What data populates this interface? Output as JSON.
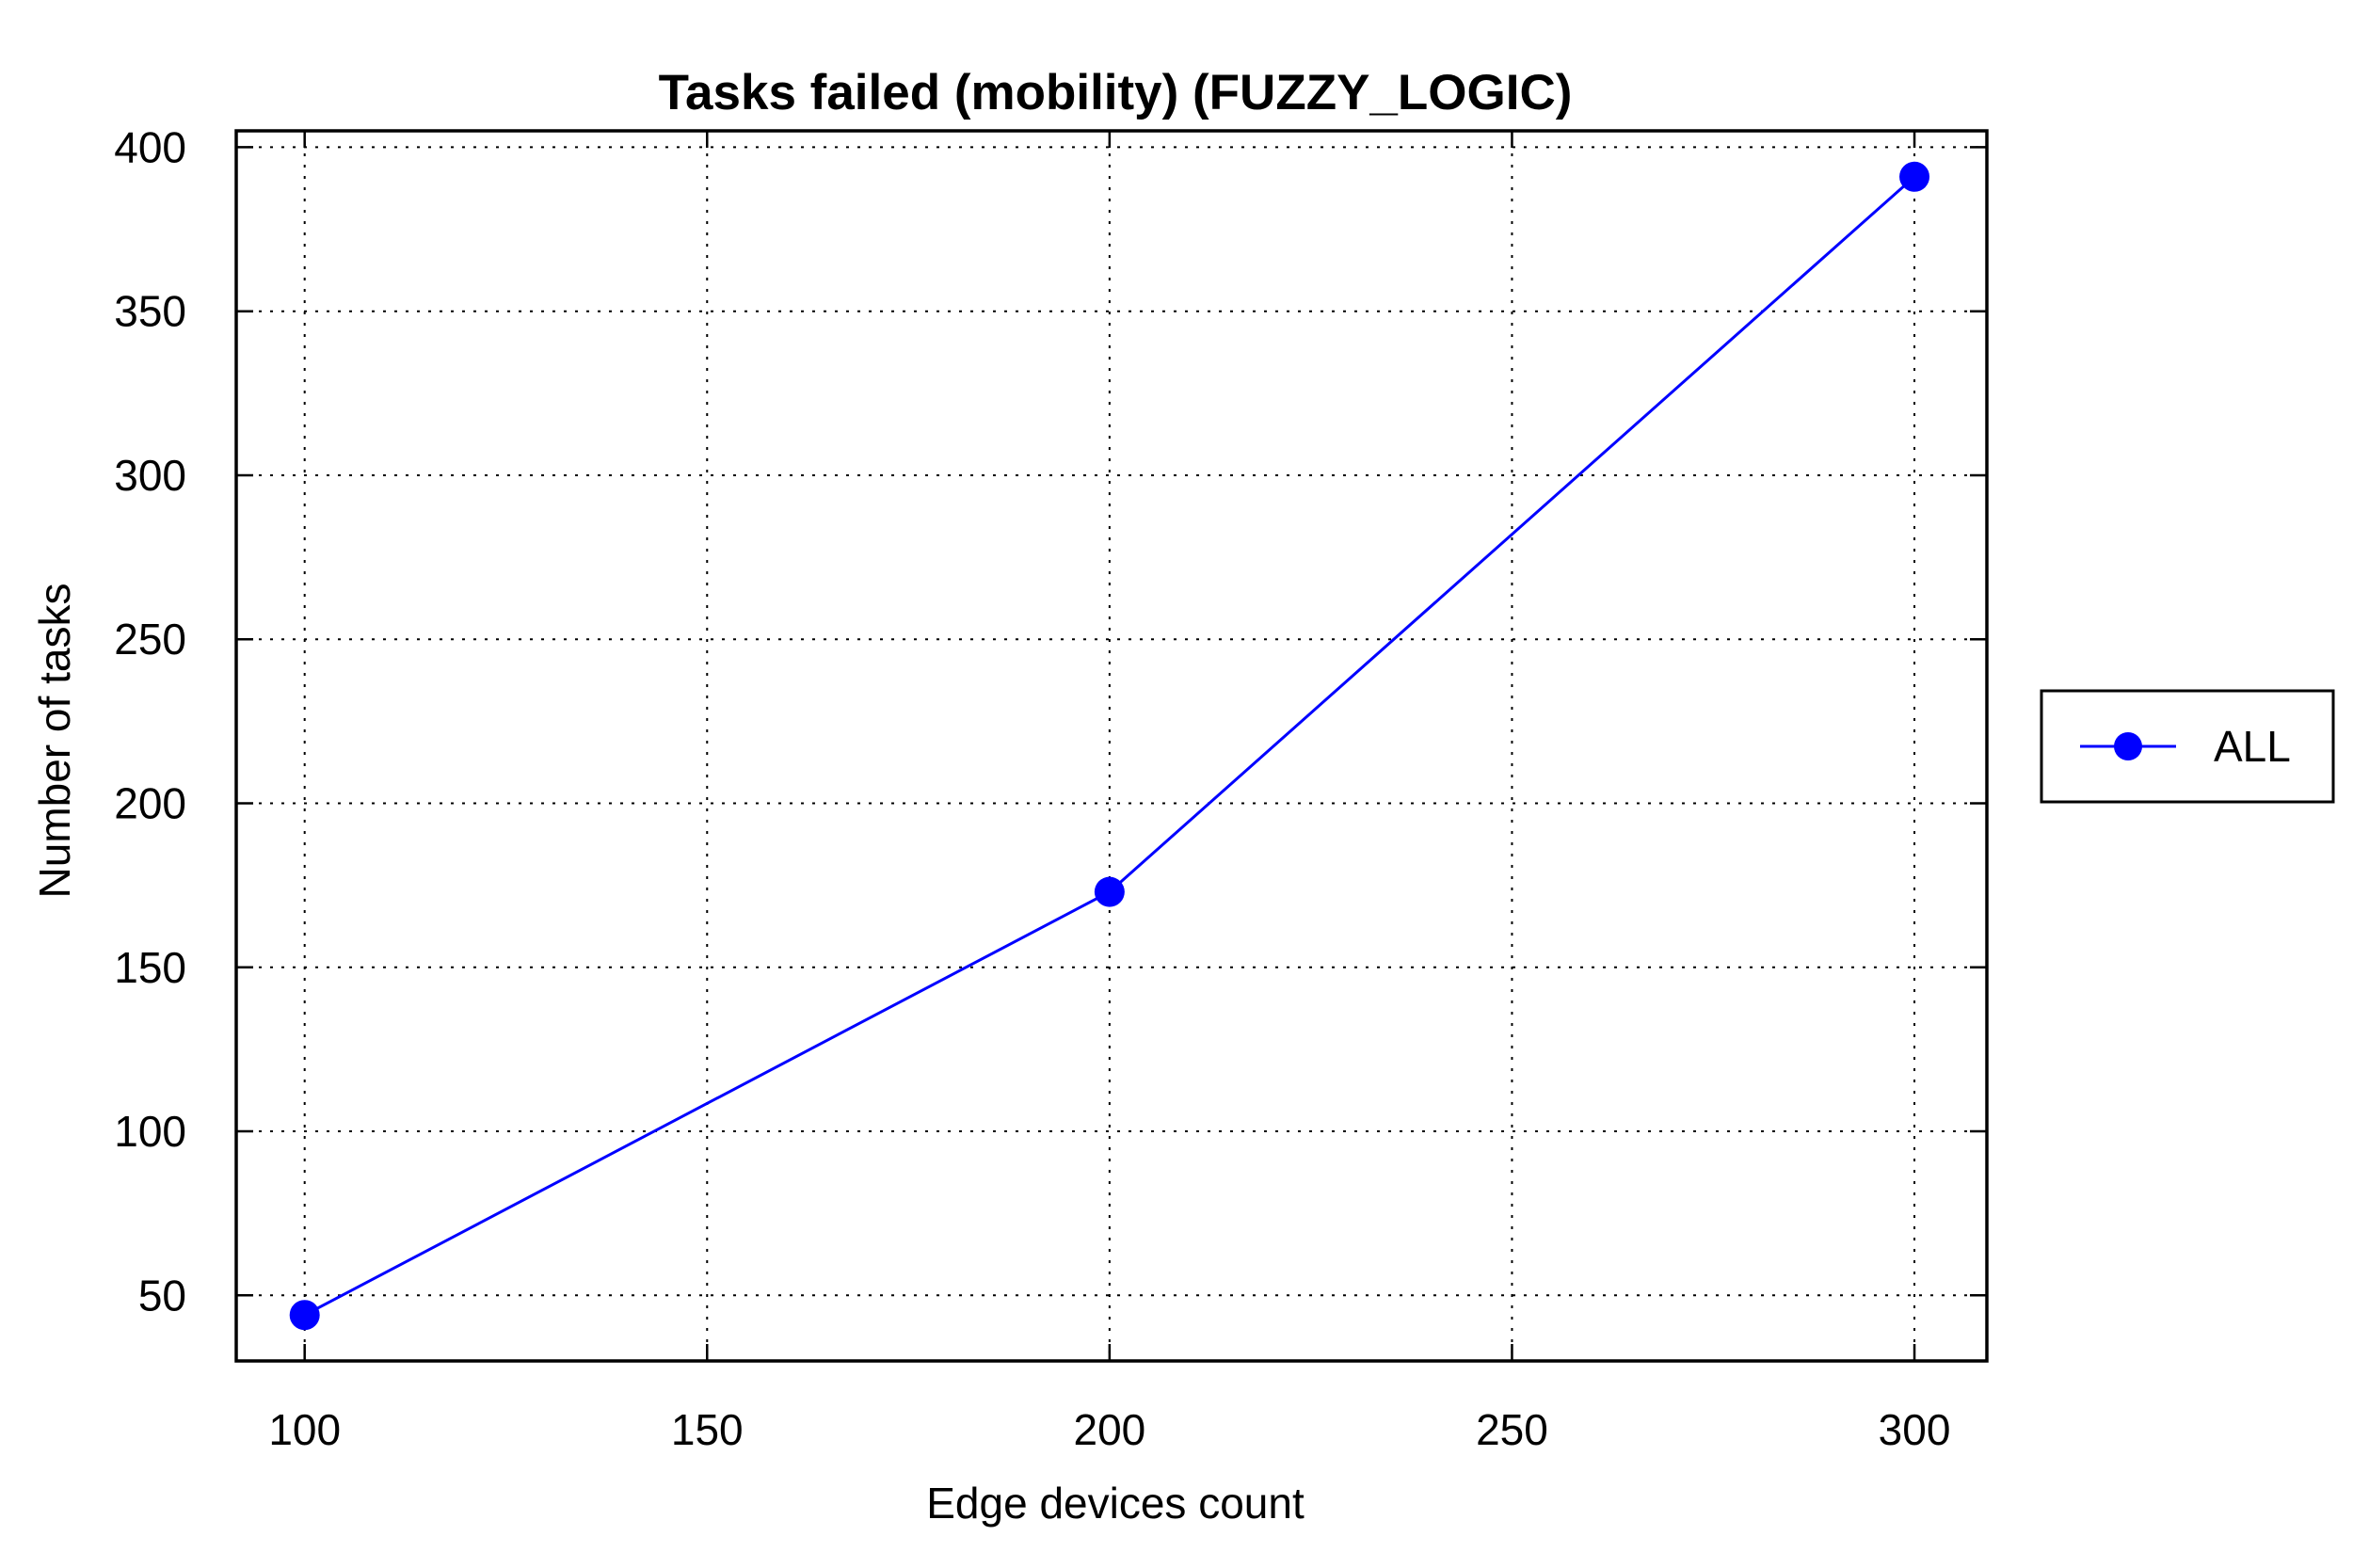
{
  "chart_data": {
    "type": "line",
    "title": "Tasks failed (mobility) (FUZZY_LOGIC)",
    "xlabel": "Edge devices count",
    "ylabel": "Number of tasks",
    "xlim": [
      91.5,
      309
    ],
    "ylim": [
      30,
      405
    ],
    "xticks": [
      100,
      150,
      200,
      250,
      300
    ],
    "yticks": [
      50,
      100,
      150,
      200,
      250,
      300,
      350,
      400
    ],
    "grid": true,
    "legend_position": "right",
    "series": [
      {
        "name": "ALL",
        "color": "#0000ff",
        "marker": "circle",
        "x": [
          100,
          200,
          300
        ],
        "y": [
          44,
          173,
          391
        ]
      }
    ]
  }
}
